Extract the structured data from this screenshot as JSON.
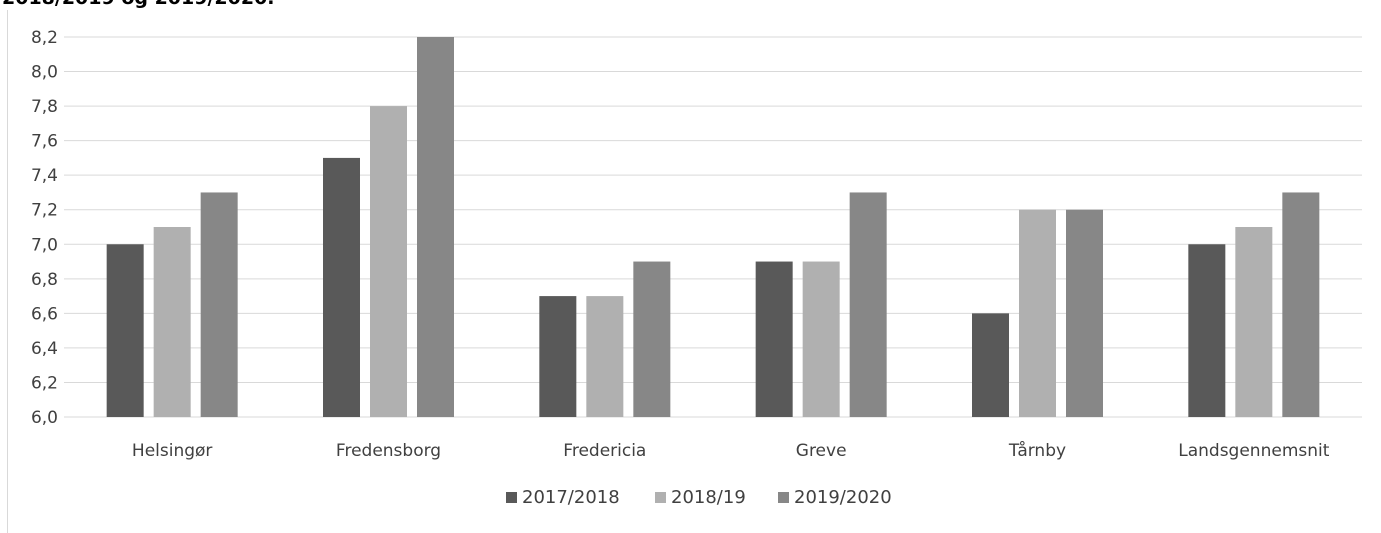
{
  "caption": "2018/2019 og 2019/2020.",
  "chart_data": {
    "type": "bar",
    "categories": [
      "Helsingør",
      "Fredensborg",
      "Fredericia",
      "Greve",
      "Tårnby",
      "Landsgennemsnit"
    ],
    "series": [
      {
        "name": "2017/2018",
        "color": "#595959",
        "values": [
          7.0,
          7.5,
          6.7,
          6.9,
          6.6,
          7.0
        ]
      },
      {
        "name": "2018/19",
        "color": "#b0b0b0",
        "values": [
          7.1,
          7.8,
          6.7,
          6.9,
          7.2,
          7.1
        ]
      },
      {
        "name": "2019/2020",
        "color": "#878787",
        "values": [
          7.3,
          8.2,
          6.9,
          7.3,
          7.2,
          7.3
        ]
      }
    ],
    "ylim": [
      6.0,
      8.2
    ],
    "yticks": [
      "6,0",
      "6,2",
      "6,4",
      "6,6",
      "6,8",
      "7,0",
      "7,2",
      "7,4",
      "7,6",
      "7,8",
      "8,0",
      "8,2"
    ],
    "grid": true,
    "legend_position": "bottom"
  }
}
